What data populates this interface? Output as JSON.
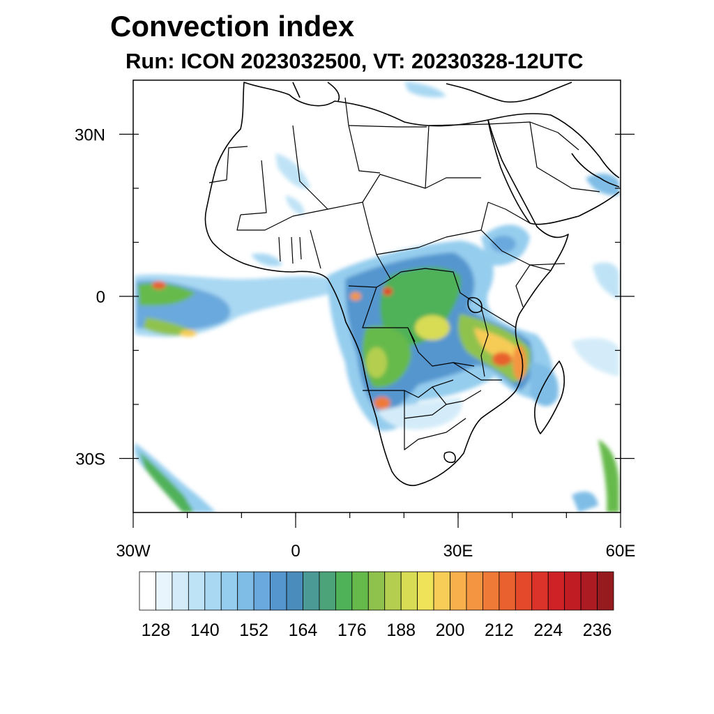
{
  "header": {
    "title": "Convection index",
    "subtitle": "Run: ICON 2023032500,  VT: 20230328-12UTC"
  },
  "map": {
    "projection": "cylindrical equidistant",
    "lon_range": [
      -30,
      60
    ],
    "lat_range": [
      -40,
      40
    ],
    "lat_ticks": [
      {
        "value": 30,
        "label": "30N"
      },
      {
        "value": 0,
        "label": "0"
      },
      {
        "value": -30,
        "label": "30S"
      }
    ],
    "lon_ticks": [
      {
        "value": -30,
        "label": "30W"
      },
      {
        "value": 0,
        "label": "0"
      },
      {
        "value": 30,
        "label": "30E"
      },
      {
        "value": 60,
        "label": "60E"
      }
    ],
    "minor_tick_step_deg": 10,
    "field_regions": [
      {
        "name": "Congo basin convection",
        "lon": 24,
        "lat": -2,
        "peak": 190
      },
      {
        "name": "East African convection (Tanzania/Mozambique)",
        "lon": 37,
        "lat": -9,
        "peak": 215
      },
      {
        "name": "Angola convection",
        "lon": 17,
        "lat": -11,
        "peak": 195
      },
      {
        "name": "Namibia/Angola border cell",
        "lon": 16,
        "lat": -19,
        "peak": 205
      },
      {
        "name": "Equatorial Atlantic band",
        "lon": -22,
        "lat": -1,
        "peak": 210
      },
      {
        "name": "Gabon cell",
        "lon": 11,
        "lat": -1,
        "peak": 215
      },
      {
        "name": "Ethiopian highlands",
        "lon": 38,
        "lat": 9,
        "peak": 165
      },
      {
        "name": "South Atlantic frontal band",
        "lon": -20,
        "lat": -35,
        "peak": 175
      },
      {
        "name": "Southwest Indian Ocean band",
        "lon": 58,
        "lat": -33,
        "peak": 185
      }
    ]
  },
  "colorbar": {
    "levels": [
      124,
      128,
      132,
      136,
      140,
      144,
      148,
      152,
      156,
      160,
      164,
      168,
      172,
      176,
      180,
      184,
      188,
      192,
      196,
      200,
      204,
      208,
      212,
      216,
      220,
      224,
      228,
      232,
      236
    ],
    "label_values": [
      "128",
      "140",
      "152",
      "164",
      "176",
      "188",
      "200",
      "212",
      "224",
      "236"
    ],
    "colors": [
      "#ffffff",
      "#e8f5fc",
      "#d4ecf9",
      "#bfe3f6",
      "#a9d8f3",
      "#95cdee",
      "#7fbde6",
      "#6aa9dd",
      "#5596cf",
      "#4a8dbd",
      "#4b9a96",
      "#4ca37a",
      "#4fb158",
      "#66ba4c",
      "#8fc24d",
      "#b4cf4f",
      "#d8dc55",
      "#efe35a",
      "#f7cc57",
      "#f7b04c",
      "#f49542",
      "#ef7a38",
      "#e9612f",
      "#e3492a",
      "#db3329",
      "#cf2227",
      "#bf1c24",
      "#ac1a22",
      "#951b1e"
    ]
  }
}
